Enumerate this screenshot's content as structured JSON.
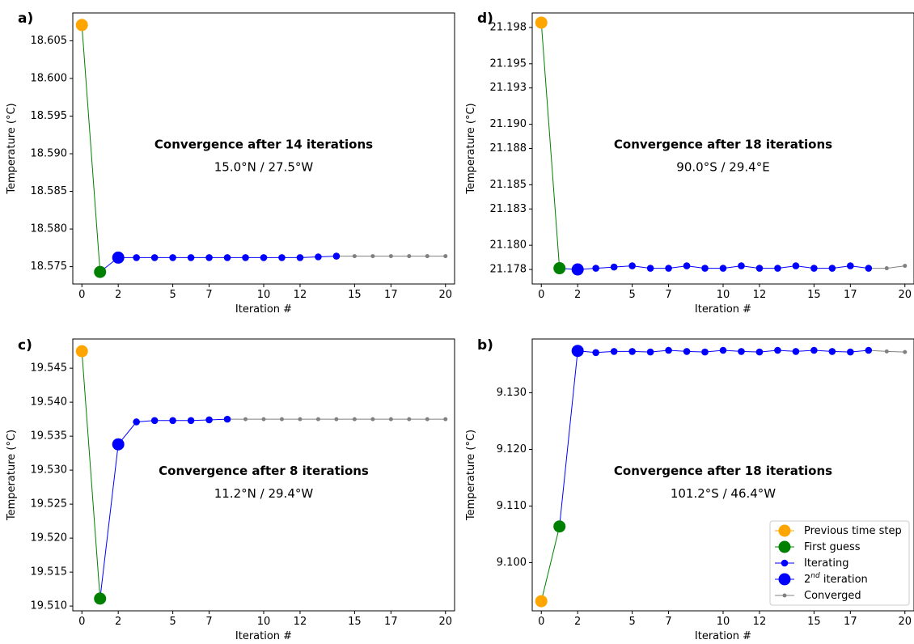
{
  "legend": [
    {
      "label": "Previous time step",
      "sup": "",
      "suffix": "",
      "color": "#ffa500",
      "marker": "large"
    },
    {
      "label": "First guess",
      "sup": "",
      "suffix": "",
      "color": "#008000",
      "marker": "large"
    },
    {
      "label": "Iterating",
      "sup": "",
      "suffix": "",
      "color": "#0000ff",
      "marker": "small"
    },
    {
      "label": "2",
      "sup": "nd",
      "suffix": " iteration",
      "color": "#0000ff",
      "marker": "large"
    },
    {
      "label": "Converged",
      "sup": "",
      "suffix": "",
      "color": "#808080",
      "marker": "tiny"
    }
  ],
  "chart_data": [
    {
      "panel_label": "a)",
      "type": "line",
      "xlabel": "Iteration #",
      "ylabel": "Temperature (°C)",
      "annotation_title": "Convergence after 14 iterations",
      "annotation_sub": "15.0°N / 27.5°W",
      "xlim": [
        -0.5,
        20.5
      ],
      "ylim": [
        18.5727,
        18.6087
      ],
      "x_ticks": [
        "0",
        "2",
        "5",
        "7",
        "10",
        "12",
        "15",
        "17",
        "20"
      ],
      "y_ticks": [
        "18.575",
        "18.580",
        "18.585",
        "18.590",
        "18.595",
        "18.600",
        "18.605"
      ],
      "previous": {
        "x": 0,
        "y": 18.6071
      },
      "first_guess": {
        "x": 1,
        "y": 18.5743
      },
      "second_iteration": {
        "x": 2,
        "y": 18.5762
      },
      "iterating": {
        "x": [
          3,
          4,
          5,
          6,
          7,
          8,
          9,
          10,
          11,
          12,
          13,
          14
        ],
        "y": [
          18.5762,
          18.5762,
          18.5762,
          18.5762,
          18.5762,
          18.5762,
          18.5762,
          18.5762,
          18.5762,
          18.5762,
          18.5763,
          18.5764
        ]
      },
      "converged": {
        "x": [
          14,
          15,
          16,
          17,
          18,
          19,
          20
        ],
        "y": [
          18.5764,
          18.5764,
          18.5764,
          18.5764,
          18.5764,
          18.5764,
          18.5764
        ]
      }
    },
    {
      "panel_label": "d)",
      "type": "line",
      "xlabel": "Iteration #",
      "ylabel": "Temperature (°C)",
      "annotation_title": "Convergence after 18 iterations",
      "annotation_sub": "90.0°S / 29.4°E",
      "xlim": [
        -0.5,
        20.5
      ],
      "ylim": [
        21.1768,
        21.1992
      ],
      "x_ticks": [
        "0",
        "2",
        "5",
        "7",
        "10",
        "12",
        "15",
        "17",
        "20"
      ],
      "y_ticks": [
        "21.178",
        "21.180",
        "21.183",
        "21.185",
        "21.188",
        "21.190",
        "21.193",
        "21.195",
        "21.198"
      ],
      "previous": {
        "x": 0,
        "y": 21.1984
      },
      "first_guess": {
        "x": 1,
        "y": 21.1781
      },
      "second_iteration": {
        "x": 2,
        "y": 21.178
      },
      "iterating": {
        "x": [
          3,
          4,
          5,
          6,
          7,
          8,
          9,
          10,
          11,
          12,
          13,
          14,
          15,
          16,
          17,
          18
        ],
        "y": [
          21.1781,
          21.1782,
          21.1783,
          21.1781,
          21.1781,
          21.1783,
          21.1781,
          21.1781,
          21.1783,
          21.1781,
          21.1781,
          21.1783,
          21.1781,
          21.1781,
          21.1783,
          21.1781
        ]
      },
      "converged": {
        "x": [
          18,
          19,
          20
        ],
        "y": [
          21.1781,
          21.1781,
          21.1783
        ]
      }
    },
    {
      "panel_label": "c)",
      "type": "line",
      "xlabel": "Iteration #",
      "ylabel": "Temperature (°C)",
      "annotation_title": "Convergence after 8 iterations",
      "annotation_sub": "11.2°N / 29.4°W",
      "xlim": [
        -0.5,
        20.5
      ],
      "ylim": [
        19.5093,
        19.5493
      ],
      "x_ticks": [
        "0",
        "2",
        "5",
        "7",
        "10",
        "12",
        "15",
        "17",
        "20"
      ],
      "y_ticks": [
        "19.510",
        "19.515",
        "19.520",
        "19.525",
        "19.530",
        "19.535",
        "19.540",
        "19.545"
      ],
      "previous": {
        "x": 0,
        "y": 19.5475
      },
      "first_guess": {
        "x": 1,
        "y": 19.5111
      },
      "second_iteration": {
        "x": 2,
        "y": 19.5338
      },
      "iterating": {
        "x": [
          3,
          4,
          5,
          6,
          7,
          8
        ],
        "y": [
          19.5371,
          19.5373,
          19.5373,
          19.5373,
          19.5374,
          19.5375
        ]
      },
      "converged": {
        "x": [
          8,
          9,
          10,
          11,
          12,
          13,
          14,
          15,
          16,
          17,
          18,
          19,
          20
        ],
        "y": [
          19.5375,
          19.5375,
          19.5375,
          19.5375,
          19.5375,
          19.5375,
          19.5375,
          19.5375,
          19.5375,
          19.5375,
          19.5375,
          19.5375,
          19.5375
        ]
      }
    },
    {
      "panel_label": "b)",
      "type": "line",
      "xlabel": "Iteration #",
      "ylabel": "Temperature (°C)",
      "annotation_title": "Convergence after 18 iterations",
      "annotation_sub": "101.2°S / 46.4°W",
      "xlim": [
        -0.5,
        20.5
      ],
      "ylim": [
        9.0915,
        9.1395
      ],
      "x_ticks": [
        "0",
        "2",
        "5",
        "7",
        "10",
        "12",
        "15",
        "17",
        "20"
      ],
      "y_ticks": [
        "9.100",
        "9.110",
        "9.120",
        "9.130"
      ],
      "previous": {
        "x": 0,
        "y": 9.0932
      },
      "first_guess": {
        "x": 1,
        "y": 9.1064
      },
      "second_iteration": {
        "x": 2,
        "y": 9.1374
      },
      "iterating": {
        "x": [
          3,
          4,
          5,
          6,
          7,
          8,
          9,
          10,
          11,
          12,
          13,
          14,
          15,
          16,
          17,
          18
        ],
        "y": [
          9.1371,
          9.1373,
          9.1373,
          9.1372,
          9.1375,
          9.1373,
          9.1372,
          9.1375,
          9.1373,
          9.1372,
          9.1375,
          9.1373,
          9.1375,
          9.1373,
          9.1372,
          9.1375
        ]
      },
      "converged": {
        "x": [
          18,
          19,
          20
        ],
        "y": [
          9.1375,
          9.1373,
          9.1372
        ]
      }
    }
  ]
}
